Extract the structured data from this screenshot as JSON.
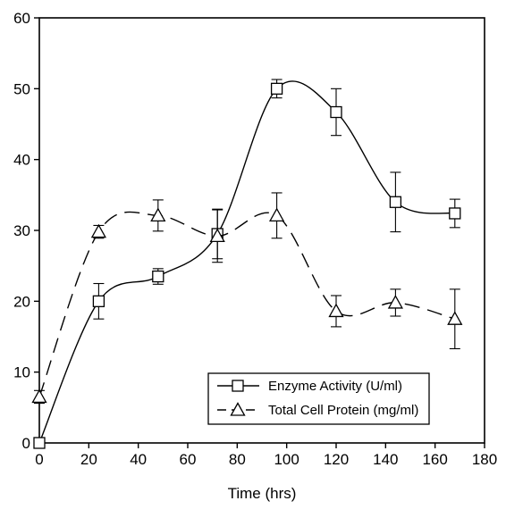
{
  "chart_data": {
    "type": "line",
    "title": "",
    "xlabel": "Time (hrs)",
    "ylabel": "",
    "xlim": [
      0,
      180
    ],
    "ylim": [
      0,
      60
    ],
    "xticks": [
      0,
      20,
      40,
      60,
      80,
      100,
      120,
      140,
      160,
      180
    ],
    "yticks": [
      0,
      10,
      20,
      30,
      40,
      50,
      60
    ],
    "grid": false,
    "legend_position": "lower-right",
    "series": [
      {
        "name": "Enzyme Activity (U/ml)",
        "marker": "square",
        "line_style": "solid",
        "x": [
          0,
          24,
          48,
          72,
          96,
          120,
          144,
          168
        ],
        "y": [
          0,
          20,
          23.5,
          29.5,
          50,
          46.7,
          34,
          32.4
        ],
        "error": [
          0,
          2.5,
          1.1,
          3.5,
          1.3,
          3.3,
          4.2,
          2.0
        ]
      },
      {
        "name": "Total Cell Protein (mg/ml)",
        "marker": "triangle",
        "line_style": "dashed",
        "x": [
          0,
          24,
          48,
          72,
          96,
          120,
          144,
          168
        ],
        "y": [
          6.5,
          29.8,
          32.1,
          29.2,
          32.1,
          18.6,
          19.8,
          17.5
        ],
        "error": [
          0.9,
          0.9,
          2.2,
          3.7,
          3.2,
          2.2,
          1.9,
          4.2
        ]
      }
    ]
  }
}
